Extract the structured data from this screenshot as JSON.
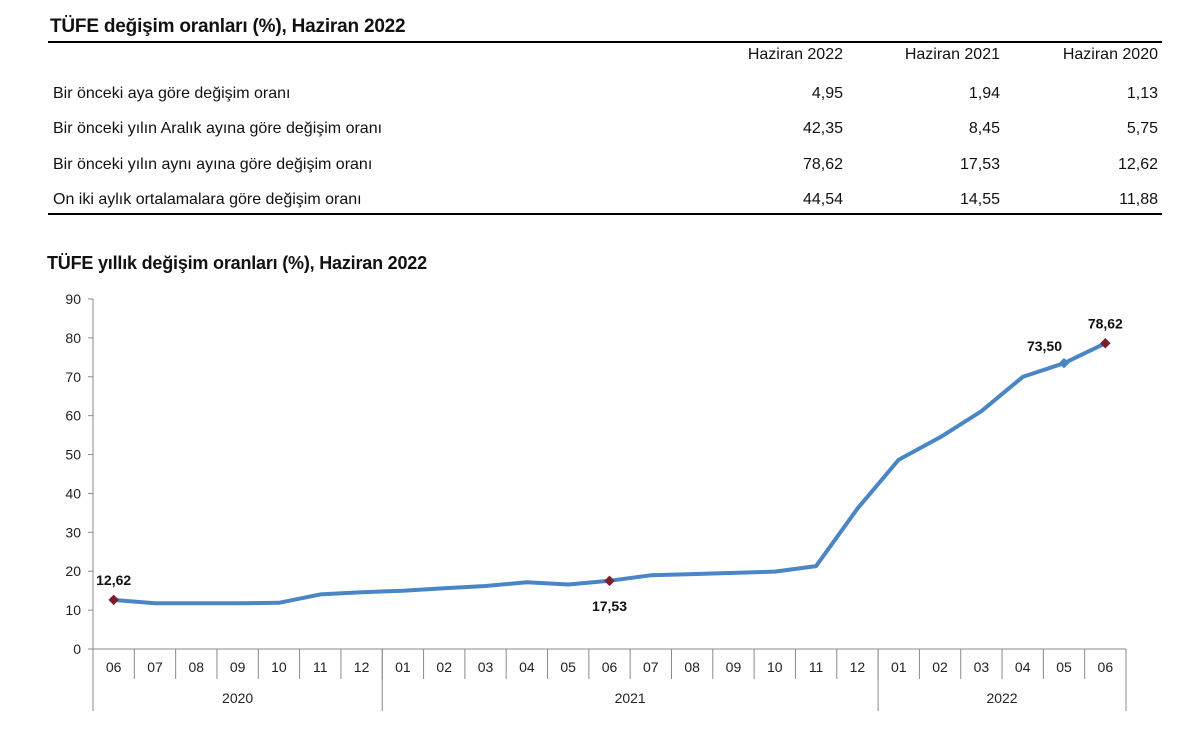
{
  "table": {
    "title": "TÜFE değişim oranları (%), Haziran 2022",
    "columns": [
      "Haziran 2022",
      "Haziran 2021",
      "Haziran 2020"
    ],
    "rows": [
      {
        "label": "Bir önceki aya göre değişim oranı",
        "values": [
          "4,95",
          "1,94",
          "1,13"
        ]
      },
      {
        "label": "Bir önceki yılın Aralık ayına göre değişim oranı",
        "values": [
          "42,35",
          "8,45",
          "5,75"
        ]
      },
      {
        "label": "Bir önceki yılın aynı ayına göre değişim oranı",
        "values": [
          "78,62",
          "17,53",
          "12,62"
        ]
      },
      {
        "label": "On iki aylık ortalamalara göre değişim oranı",
        "values": [
          "44,54",
          "14,55",
          "11,88"
        ]
      }
    ]
  },
  "chart_data": {
    "type": "line",
    "title": "TÜFE yıllık değişim oranları (%), Haziran 2022",
    "xlabel": "",
    "ylabel": "",
    "ylim": [
      0,
      90
    ],
    "yticks": [
      "0",
      "10",
      "20",
      "30",
      "40",
      "50",
      "60",
      "70",
      "80",
      "90"
    ],
    "categories": [
      "06",
      "07",
      "08",
      "09",
      "10",
      "11",
      "12",
      "01",
      "02",
      "03",
      "04",
      "05",
      "06",
      "07",
      "08",
      "09",
      "10",
      "11",
      "12",
      "01",
      "02",
      "03",
      "04",
      "05",
      "06"
    ],
    "year_groups": [
      {
        "label": "2020",
        "start": 0,
        "end": 6
      },
      {
        "label": "2021",
        "start": 7,
        "end": 18
      },
      {
        "label": "2022",
        "start": 19,
        "end": 24
      }
    ],
    "series": [
      {
        "name": "TÜFE yıllık değişim",
        "color": "#4a86c5",
        "values": [
          12.62,
          11.76,
          11.77,
          11.75,
          11.89,
          14.03,
          14.6,
          14.97,
          15.61,
          16.19,
          17.14,
          16.59,
          17.53,
          18.95,
          19.25,
          19.58,
          19.89,
          21.31,
          36.08,
          48.69,
          54.44,
          61.14,
          69.97,
          73.5,
          78.62
        ]
      }
    ],
    "highlight_color": "#7a1f2b",
    "annotations": [
      {
        "index": 0,
        "label": "12,62",
        "pos": "above",
        "marker": "#7a1f2b"
      },
      {
        "index": 12,
        "label": "17,53",
        "pos": "below",
        "marker": "#7a1f2b"
      },
      {
        "index": 23,
        "label": "73,50",
        "pos": "above-left",
        "marker": "#4a86c5"
      },
      {
        "index": 24,
        "label": "78,62",
        "pos": "above",
        "marker": "#7a1f2b"
      }
    ]
  }
}
